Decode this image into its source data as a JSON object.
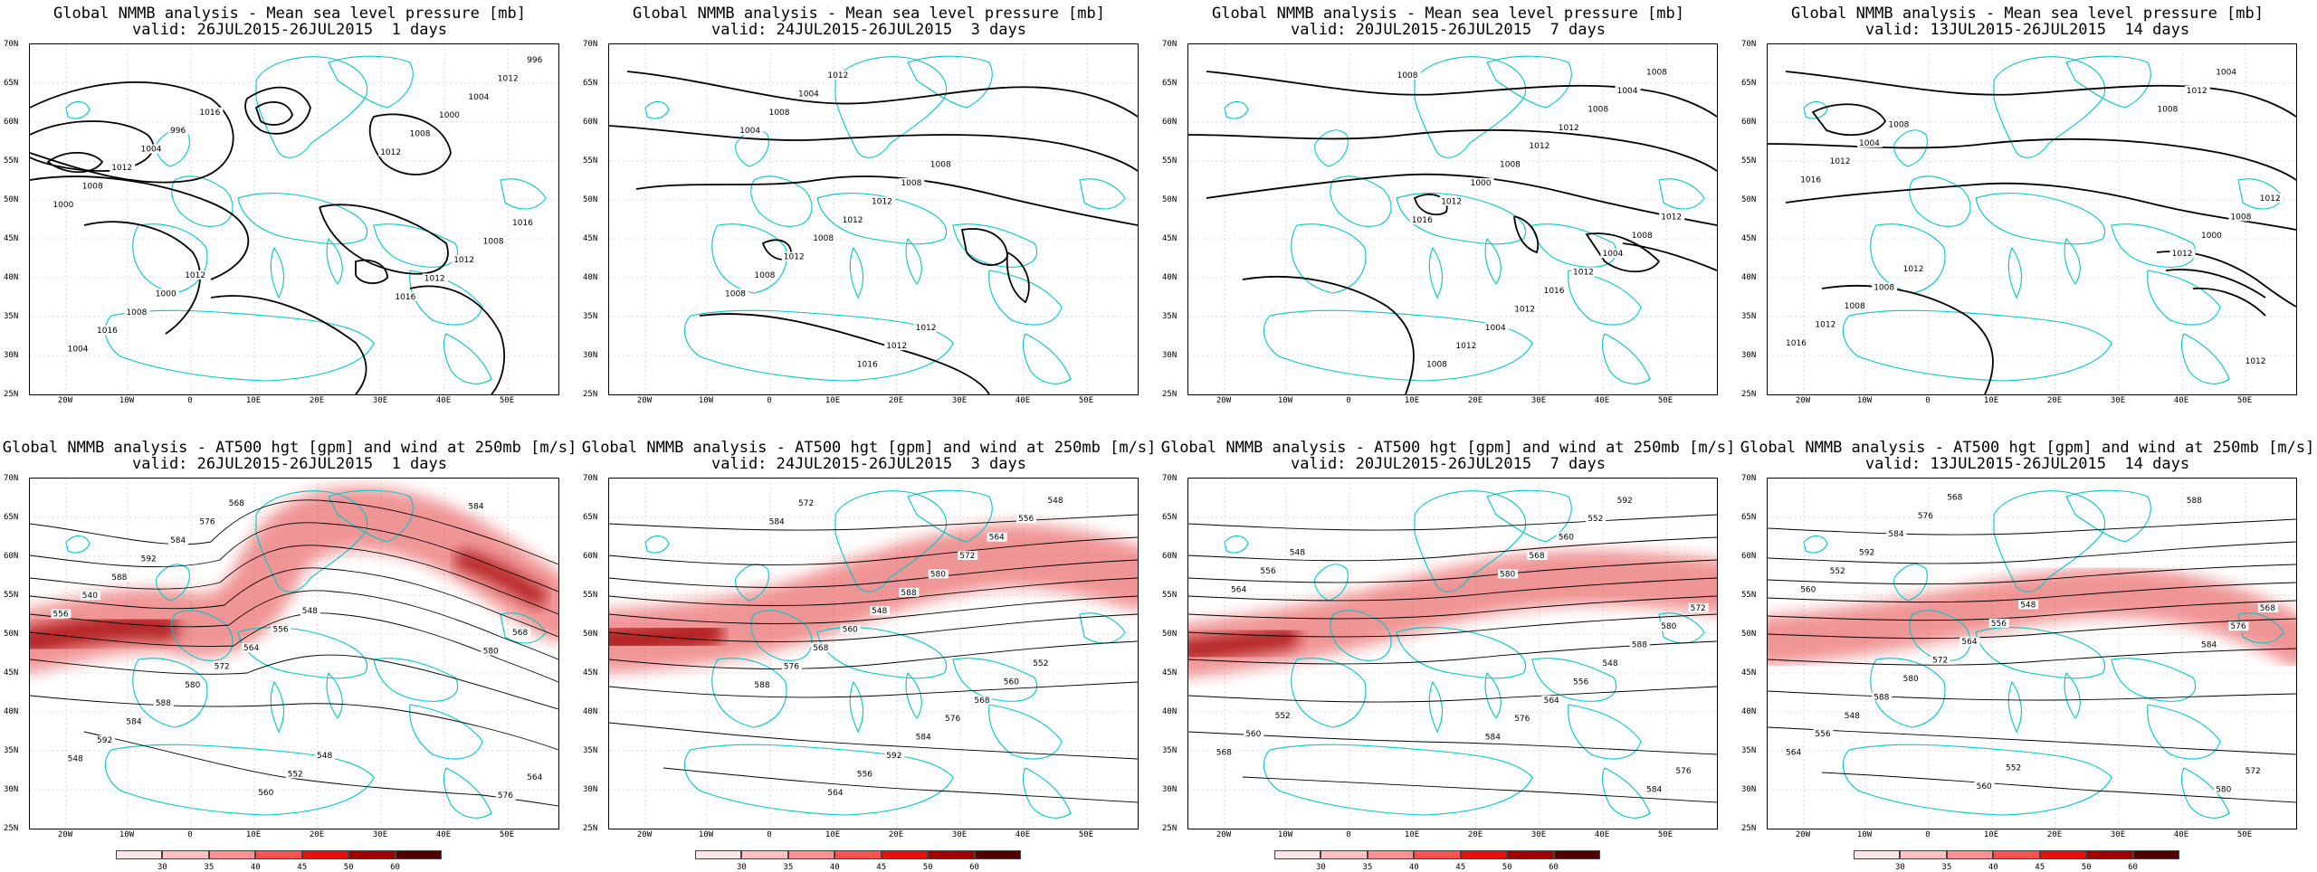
{
  "panels": [
    {
      "row": "mslp",
      "title": "Global NMMB analysis - Mean sea level pressure [mb]",
      "subtitle": "valid: 26JUL2015-26JUL2015  1 days",
      "contour_labels": [
        "1016",
        "1012",
        "996",
        "1000",
        "1004",
        "1008",
        "1012",
        "1016",
        "1008",
        "1004",
        "1000",
        "996",
        "1016",
        "1012",
        "1008",
        "1004",
        "1012",
        "1000",
        "1012",
        "1008",
        "1016",
        "1012"
      ]
    },
    {
      "row": "mslp",
      "title": "Global NMMB analysis - Mean sea level pressure [mb]",
      "subtitle": "valid: 24JUL2015-26JUL2015  3 days",
      "contour_labels": [
        "1008",
        "1012",
        "1008",
        "1012",
        "1012",
        "1016",
        "1012",
        "1012",
        "1008",
        "1004",
        "1012",
        "1008",
        "1008",
        "1004",
        "1008"
      ]
    },
    {
      "row": "mslp",
      "title": "Global NMMB analysis - Mean sea level pressure [mb]",
      "subtitle": "valid: 20JUL2015-26JUL2015  7 days",
      "contour_labels": [
        "1012",
        "1008",
        "1008",
        "1004",
        "1004",
        "1008",
        "1012",
        "1012",
        "1016",
        "1012",
        "1012",
        "1008",
        "1004",
        "1000",
        "1012",
        "1012",
        "1008",
        "1016",
        "1008"
      ]
    },
    {
      "row": "mslp",
      "title": "Global NMMB analysis - Mean sea level pressure [mb]",
      "subtitle": "valid: 13JUL2015-26JUL2015  14 days",
      "contour_labels": [
        "1012",
        "1008",
        "1008",
        "1004",
        "1008",
        "1012",
        "1012",
        "1016",
        "1016",
        "1012",
        "1012",
        "1008",
        "1004",
        "1000",
        "1012",
        "1012",
        "1008"
      ]
    },
    {
      "row": "z500",
      "title": "Global NMMB analysis - AT500 hgt [gpm] and wind at 250mb [m/s]",
      "subtitle": "valid: 26JUL2015-26JUL2015  1 days",
      "contour_labels": [
        "548",
        "548",
        "552",
        "556",
        "560",
        "564",
        "568",
        "572",
        "576",
        "580",
        "584",
        "588",
        "592",
        "584",
        "588",
        "592",
        "540",
        "548",
        "556",
        "564",
        "568",
        "576",
        "580",
        "584"
      ]
    },
    {
      "row": "z500",
      "title": "Global NMMB analysis - AT500 hgt [gpm] and wind at 250mb [m/s]",
      "subtitle": "valid: 24JUL2015-26JUL2015  3 days",
      "contour_labels": [
        "548",
        "552",
        "556",
        "560",
        "564",
        "568",
        "572",
        "576",
        "580",
        "584",
        "588",
        "592",
        "548",
        "556",
        "560",
        "564",
        "568",
        "572",
        "576",
        "584",
        "588"
      ]
    },
    {
      "row": "z500",
      "title": "Global NMMB analysis - AT500 hgt [gpm] and wind at 250mb [m/s]",
      "subtitle": "valid: 20JUL2015-26JUL2015  7 days",
      "contour_labels": [
        "548",
        "552",
        "556",
        "560",
        "564",
        "568",
        "572",
        "576",
        "580",
        "584",
        "588",
        "592",
        "548",
        "552",
        "556",
        "560",
        "564",
        "568",
        "576",
        "580",
        "584"
      ]
    },
    {
      "row": "z500",
      "title": "Global NMMB analysis - AT500 hgt [gpm] and wind at 250mb [m/s]",
      "subtitle": "valid: 13JUL2015-26JUL2015  14 days",
      "contour_labels": [
        "548",
        "552",
        "556",
        "560",
        "564",
        "568",
        "572",
        "576",
        "580",
        "584",
        "588",
        "592",
        "548",
        "552",
        "556",
        "560",
        "564",
        "568",
        "572",
        "576",
        "580",
        "584",
        "588"
      ]
    }
  ],
  "lat_labels": [
    "70N",
    "65N",
    "60N",
    "55N",
    "50N",
    "45N",
    "40N",
    "35N",
    "30N",
    "25N"
  ],
  "lon_labels": [
    "20W",
    "10W",
    "0",
    "10E",
    "20E",
    "30E",
    "40E",
    "50E"
  ],
  "colorbar": {
    "labels": [
      "30",
      "35",
      "40",
      "45",
      "50",
      "60"
    ],
    "colors": [
      "#ffe6e6",
      "#ffc0c0",
      "#ff9090",
      "#ff5050",
      "#e81010",
      "#a00000",
      "#500000"
    ]
  },
  "colors": {
    "coastline": "#00c8c8",
    "contour": "#000000",
    "jet": "#e01818"
  }
}
